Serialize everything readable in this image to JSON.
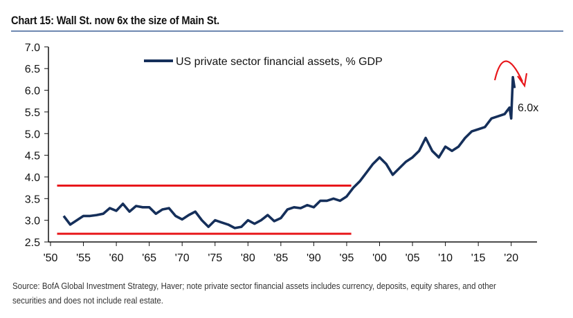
{
  "title": "Chart 15: Wall St. now 6x the size of Main St.",
  "source": "Source: BofA Global Investment Strategy, Haver; note private sector financial assets includes currency, deposits, equity shares, and other securities and does not include real estate.",
  "chart_data": {
    "type": "line",
    "title": "Chart 15: Wall St. now 6x the size of Main St.",
    "ylim": [
      2.5,
      7.0
    ],
    "xlim": [
      1950,
      2024
    ],
    "y_ticks": [
      "7.0",
      "6.5",
      "6.0",
      "5.5",
      "5.0",
      "4.5",
      "4.0",
      "3.5",
      "3.0",
      "2.5"
    ],
    "x_ticks": [
      "'50",
      "'55",
      "'60",
      "'65",
      "'70",
      "'75",
      "'80",
      "'85",
      "'90",
      "'95",
      "'00",
      "'05",
      "'10",
      "'15",
      "'20"
    ],
    "grid": false,
    "legend": "top-center",
    "series": [
      {
        "name": "US private sector financial assets, % GDP",
        "color": "#152f5a",
        "x": [
          1952,
          1953,
          1954,
          1955,
          1956,
          1957,
          1958,
          1959,
          1960,
          1961,
          1962,
          1963,
          1964,
          1965,
          1966,
          1967,
          1968,
          1969,
          1970,
          1971,
          1972,
          1973,
          1974,
          1975,
          1976,
          1977,
          1978,
          1979,
          1980,
          1981,
          1982,
          1983,
          1984,
          1985,
          1986,
          1987,
          1988,
          1989,
          1990,
          1991,
          1992,
          1993,
          1994,
          1995,
          1996,
          1997,
          1998,
          1999,
          2000,
          2001,
          2002,
          2003,
          2004,
          2005,
          2006,
          2007,
          2008,
          2009,
          2010,
          2011,
          2012,
          2013,
          2014,
          2015,
          2016,
          2017,
          2018,
          2019,
          2019.75,
          2020.0,
          2020.25,
          2020.5
        ],
        "values": [
          3.1,
          2.9,
          3.0,
          3.1,
          3.1,
          3.12,
          3.15,
          3.28,
          3.22,
          3.38,
          3.2,
          3.33,
          3.3,
          3.3,
          3.15,
          3.25,
          3.28,
          3.1,
          3.02,
          3.12,
          3.2,
          3.0,
          2.85,
          3.0,
          2.95,
          2.9,
          2.82,
          2.85,
          3.0,
          2.92,
          3.0,
          3.12,
          2.98,
          3.05,
          3.25,
          3.3,
          3.28,
          3.35,
          3.3,
          3.45,
          3.45,
          3.5,
          3.45,
          3.55,
          3.75,
          3.9,
          4.1,
          4.3,
          4.45,
          4.3,
          4.05,
          4.2,
          4.35,
          4.45,
          4.6,
          4.9,
          4.6,
          4.45,
          4.7,
          4.6,
          4.7,
          4.9,
          5.05,
          5.1,
          5.15,
          5.35,
          5.4,
          5.45,
          5.6,
          5.35,
          6.3,
          6.05
        ]
      }
    ],
    "reference_lines": [
      {
        "color": "#e8171b",
        "y": 3.8,
        "x_range": [
          1951,
          1995.7
        ]
      },
      {
        "color": "#e8171b",
        "y": 2.69,
        "x_range": [
          1951,
          1995.7
        ]
      }
    ],
    "annotations": [
      {
        "text": "6.0x",
        "color": "#111111"
      },
      {
        "shape": "curved-arrow-down",
        "color": "#e8171b"
      }
    ]
  }
}
